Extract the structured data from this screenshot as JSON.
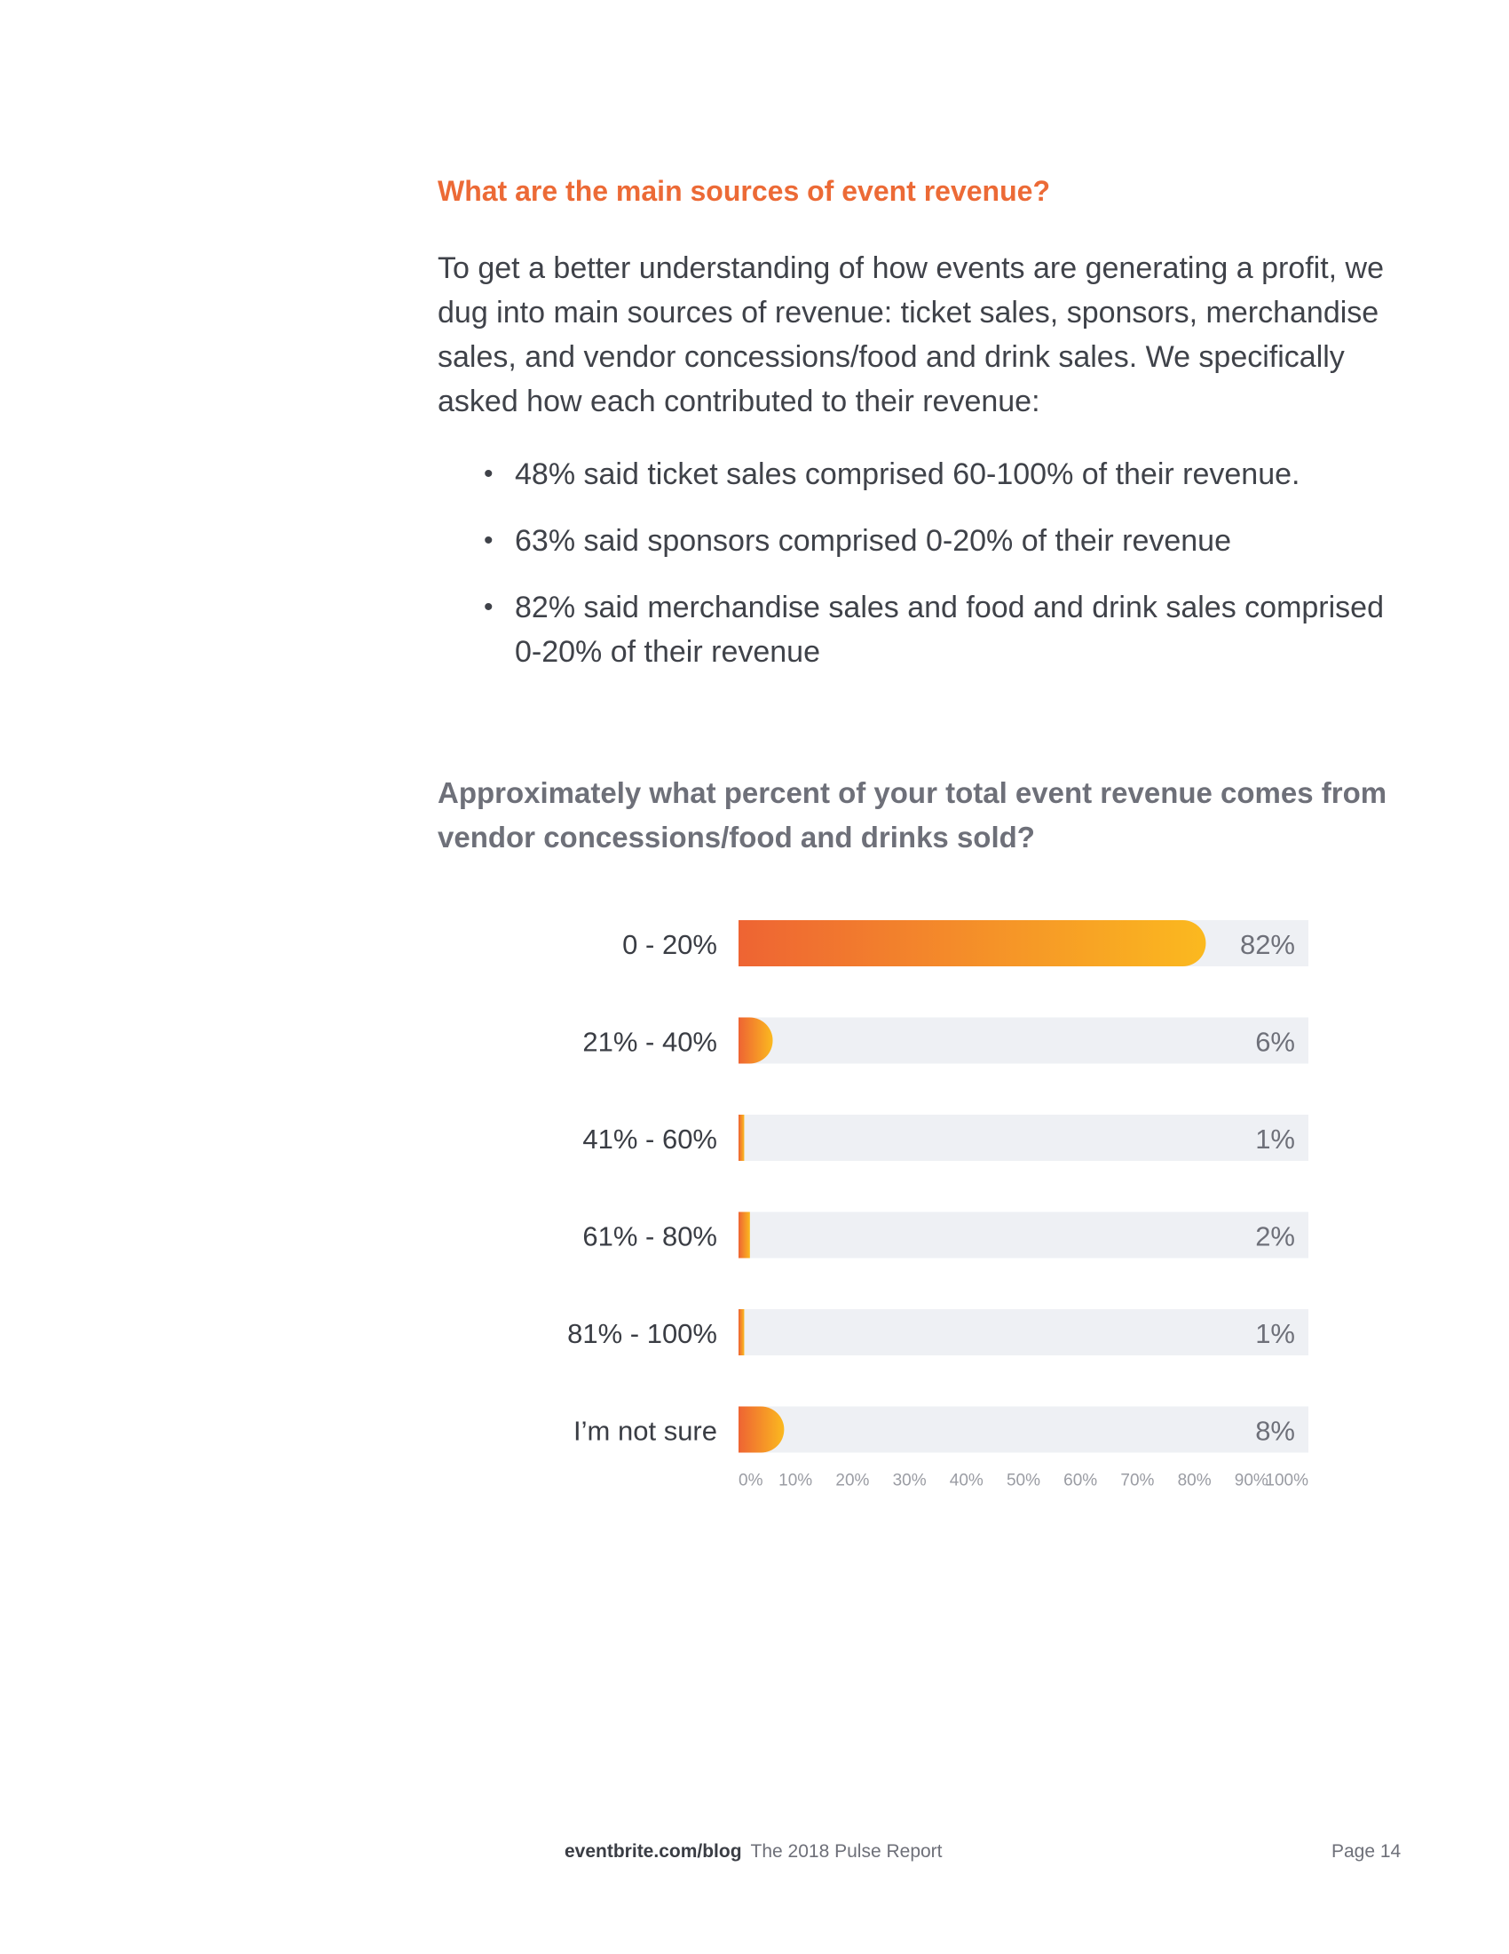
{
  "section": {
    "heading": "What are the main sources of event revenue?",
    "intro": "To get a better understanding of how events are generating a profit, we dug into main sources of revenue: ticket sales, sponsors, merchandise sales, and vendor concessions/food and drink sales. We specifically asked how each contributed to their revenue:",
    "bullets": [
      "48% said ticket sales comprised 60-100% of their revenue.",
      "63% said sponsors comprised 0-20% of their revenue",
      "82% said merchandise sales and food and drink sales comprised 0-20% of their revenue"
    ]
  },
  "question": "Approximately what percent of your total event revenue comes from vendor concessions/food and drinks sold?",
  "chart_data": {
    "type": "bar",
    "orientation": "horizontal",
    "categories": [
      "0 - 20%",
      "21% - 40%",
      "41% - 60%",
      "61% - 80%",
      "81% - 100%",
      "I’m not sure"
    ],
    "values": [
      82,
      6,
      1,
      2,
      1,
      8
    ],
    "value_labels": [
      "82%",
      "6%",
      "1%",
      "2%",
      "1%",
      "8%"
    ],
    "xlim": [
      0,
      100
    ],
    "x_ticks": [
      "0%",
      "10%",
      "20%",
      "30%",
      "40%",
      "50%",
      "60%",
      "70%",
      "80%",
      "90%",
      "100%"
    ],
    "bar_gradient": [
      "#ee6433",
      "#fbb91f"
    ],
    "track_color": "#eef0f4",
    "grid": false,
    "legend": "none"
  },
  "footer": {
    "site": "eventbrite.com/blog",
    "report": "The 2018 Pulse Report",
    "page": "Page 14"
  }
}
